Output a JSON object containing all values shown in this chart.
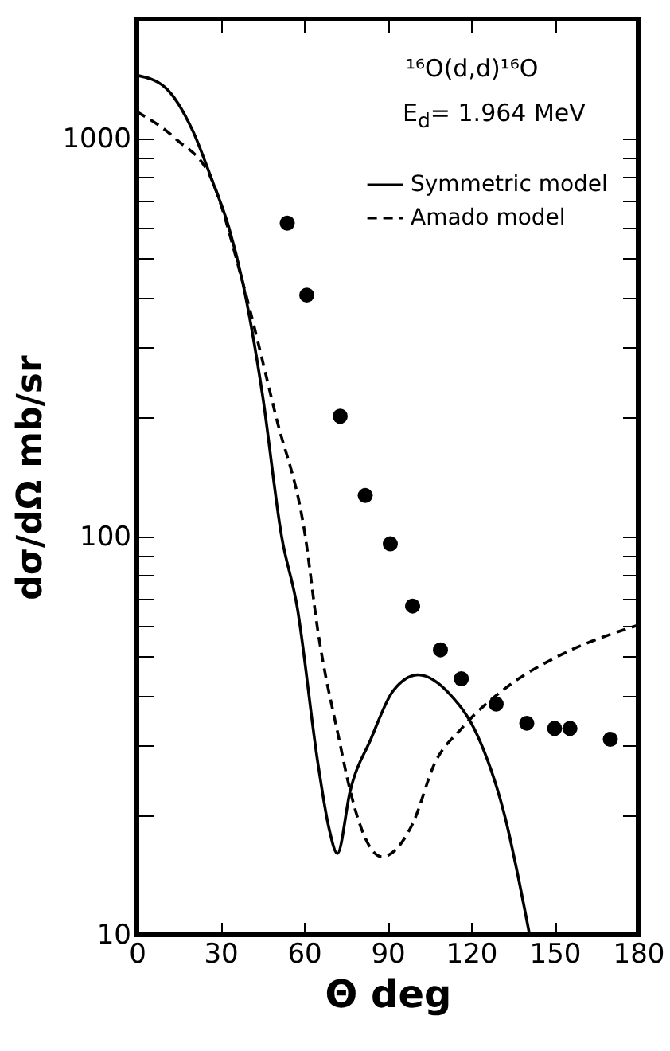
{
  "chart_data": {
    "type": "line",
    "xlabel": "Θ deg",
    "ylabel": "dσ/dΩ  mb/sr",
    "log": "y",
    "grid": false,
    "legend": "top right",
    "xlim": [
      0,
      180
    ],
    "xticks": [
      0,
      30,
      60,
      90,
      120,
      150,
      180
    ],
    "ylim": [
      10,
      2000
    ],
    "yticks": [
      10,
      {
        "value": 20,
        "label": null
      },
      {
        "value": 30,
        "label": null
      },
      {
        "value": 40,
        "label": null
      },
      {
        "value": 50,
        "label": null
      },
      {
        "value": 60,
        "label": null
      },
      {
        "value": 70,
        "label": null
      },
      {
        "value": 80,
        "label": null
      },
      {
        "value": 90,
        "label": null
      },
      100,
      {
        "value": 200,
        "label": null
      },
      {
        "value": 300,
        "label": null
      },
      {
        "value": 400,
        "label": null
      },
      {
        "value": 500,
        "label": null
      },
      {
        "value": 600,
        "label": null
      },
      {
        "value": 700,
        "label": null
      },
      {
        "value": 800,
        "label": null
      },
      {
        "value": 900,
        "label": null
      },
      1000
    ],
    "annotations": [
      "¹⁶O(d,d)¹⁶O",
      "E$_{d}$= 1.964 MeV"
    ],
    "series": [
      {
        "type": "scatter",
        "marker": "circle",
        "color": "#000000",
        "x": [
          54,
          61,
          73,
          82,
          91,
          99,
          109,
          116.5,
          129,
          140,
          150,
          155.5,
          170
        ],
        "values": [
          614,
          405,
          201,
          127,
          96,
          67,
          52,
          44,
          38,
          34,
          33,
          33,
          31
        ]
      },
      {
        "name": "Symmetric model",
        "color": "#000000",
        "line_style": "solid",
        "x": [
          0,
          10,
          20,
          27,
          33,
          38,
          45,
          52,
          57.5,
          65,
          69,
          72,
          76.6,
          84,
          92,
          101,
          112.7,
          122,
          132,
          141
        ],
        "values": [
          1445,
          1350,
          1050,
          787,
          600,
          436,
          230,
          100,
          67,
          27,
          18.5,
          16,
          23,
          31,
          41,
          45,
          40,
          32,
          20,
          10
        ]
      },
      {
        "name": "Amado model",
        "color": "#000000",
        "line_style": "dashed",
        "x": [
          0,
          14,
          27,
          38,
          50,
          60.5,
          65,
          72.6,
          76.6,
          82,
          88,
          99,
          107,
          116.6,
          134,
          151,
          180
        ],
        "values": [
          1170,
          1000,
          787,
          436,
          200,
          100,
          58,
          31,
          23,
          17.5,
          15.7,
          19,
          27,
          33,
          42.5,
          50,
          60
        ]
      }
    ]
  }
}
